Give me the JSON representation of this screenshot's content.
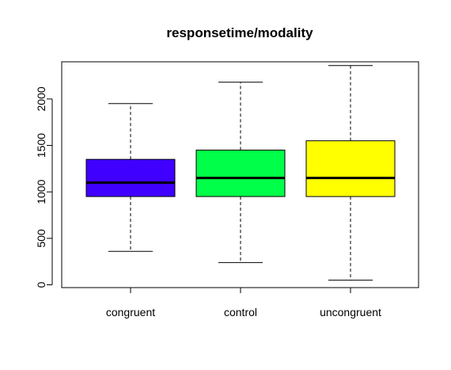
{
  "chart_data": {
    "type": "box",
    "title": "responsetime/modality",
    "xlabel": "",
    "ylabel": "",
    "categories": [
      "congruent",
      "control",
      "uncongruent"
    ],
    "ylim": [
      -30,
      2400
    ],
    "yticks": [
      0,
      500,
      1000,
      1500,
      2000
    ],
    "ytick_labels": [
      "0",
      "500",
      "1000",
      "1500",
      "2000"
    ],
    "grid": false,
    "legend": "none",
    "boxes": [
      {
        "category": "congruent",
        "min": 360,
        "q1": 950,
        "median": 1100,
        "q3": 1350,
        "max": 1950,
        "color": "#4000ff"
      },
      {
        "category": "control",
        "min": 240,
        "q1": 950,
        "median": 1150,
        "q3": 1450,
        "max": 2180,
        "color": "#00ff48"
      },
      {
        "category": "uncongruent",
        "min": 50,
        "q1": 950,
        "median": 1150,
        "q3": 1550,
        "max": 2360,
        "color": "#ffff00"
      }
    ]
  }
}
